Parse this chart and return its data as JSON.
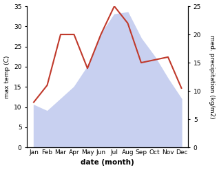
{
  "months": [
    "Jan",
    "Feb",
    "Mar",
    "Apr",
    "May",
    "Jun",
    "Jul",
    "Aug",
    "Sep",
    "Oct",
    "Nov",
    "Dec"
  ],
  "max_temp": [
    10.5,
    9.0,
    12.0,
    15.0,
    20.0,
    28.0,
    33.0,
    33.5,
    27.0,
    22.5,
    17.0,
    12.0
  ],
  "precipitation": [
    8.0,
    11.0,
    20.0,
    20.0,
    14.0,
    20.0,
    25.0,
    22.0,
    15.0,
    15.5,
    16.0,
    10.5
  ],
  "temp_color": "#c0392b",
  "precip_fill_color": "#c8d0f0",
  "temp_ylim": [
    0,
    35
  ],
  "precip_ylim": [
    0,
    25
  ],
  "xlabel": "date (month)",
  "ylabel_left": "max temp (C)",
  "ylabel_right": "med. precipitation (kg/m2)",
  "temp_yticks": [
    0,
    5,
    10,
    15,
    20,
    25,
    30,
    35
  ],
  "precip_yticks": [
    0,
    5,
    10,
    15,
    20,
    25
  ],
  "bg_color": "#ffffff"
}
